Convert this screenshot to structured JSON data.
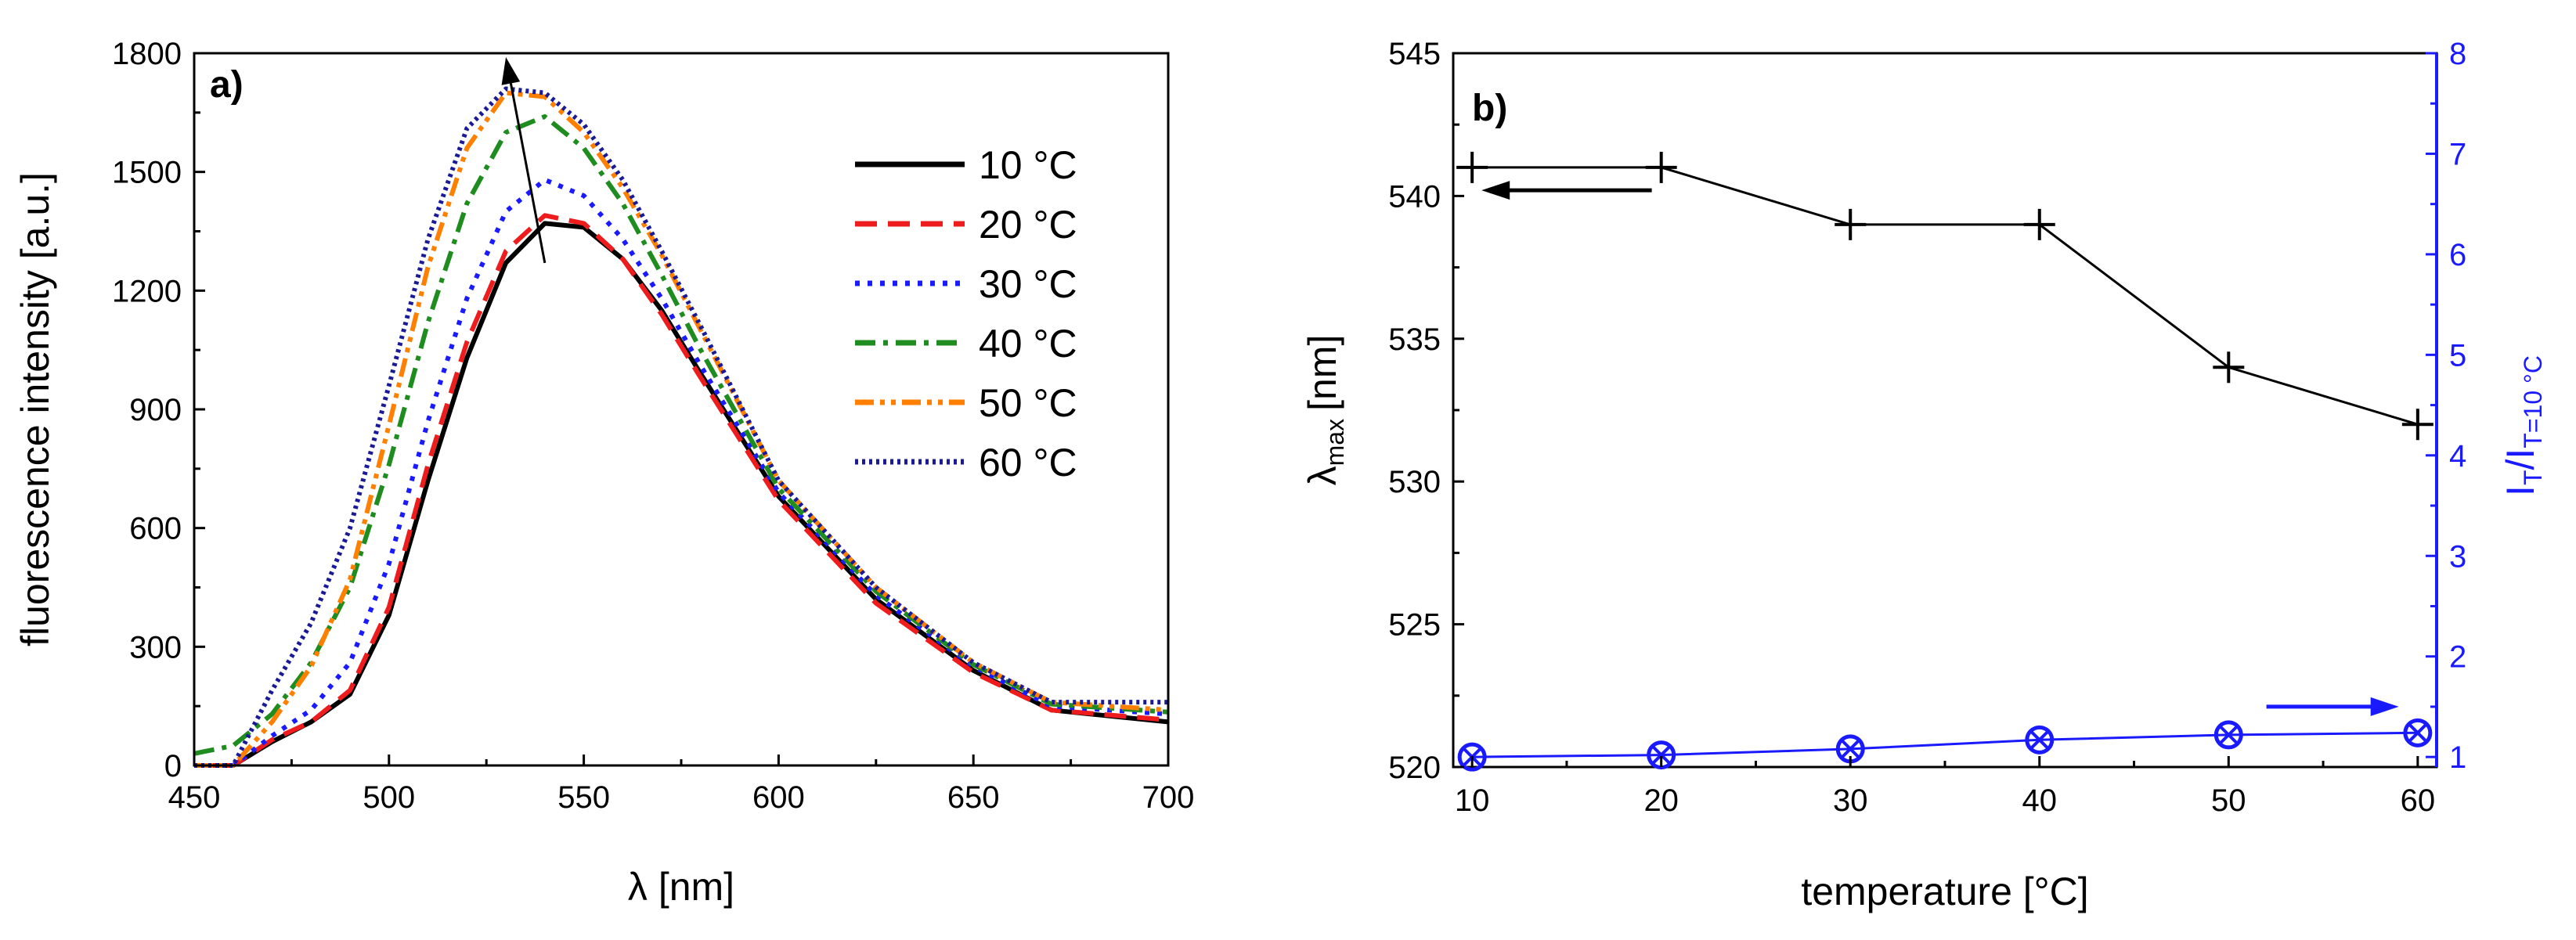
{
  "chart_data": [
    {
      "type": "line",
      "panel_label": "a)",
      "xlabel": "λ [nm]",
      "ylabel": "fluorescence intensity [a.u.]",
      "xlim": [
        450,
        700
      ],
      "ylim": [
        0,
        1800
      ],
      "xticks": [
        450,
        500,
        550,
        600,
        650,
        700
      ],
      "yticks": [
        0,
        300,
        600,
        900,
        1200,
        1500,
        1800
      ],
      "legend_position": "top-right",
      "annotation": "arrow indicating peak shift with increasing temperature",
      "series": [
        {
          "name": "10 °C",
          "color": "#000000",
          "style": "solid",
          "x": [
            450,
            460,
            470,
            480,
            490,
            500,
            510,
            520,
            530,
            540,
            550,
            560,
            570,
            580,
            600,
            625,
            650,
            670,
            700
          ],
          "values": [
            0,
            0,
            60,
            110,
            180,
            380,
            720,
            1030,
            1270,
            1370,
            1360,
            1280,
            1150,
            990,
            680,
            420,
            240,
            140,
            110
          ]
        },
        {
          "name": "20 °C",
          "color": "#ee1c1c",
          "style": "dash",
          "x": [
            450,
            460,
            470,
            480,
            490,
            500,
            510,
            520,
            530,
            540,
            550,
            560,
            570,
            580,
            600,
            625,
            650,
            670,
            700
          ],
          "values": [
            0,
            0,
            65,
            110,
            190,
            400,
            760,
            1070,
            1300,
            1390,
            1370,
            1280,
            1140,
            980,
            670,
            410,
            235,
            140,
            115
          ]
        },
        {
          "name": "30 °C",
          "color": "#1a1aff",
          "style": "dot",
          "x": [
            450,
            460,
            470,
            480,
            490,
            500,
            510,
            520,
            530,
            540,
            550,
            560,
            570,
            580,
            600,
            625,
            650,
            670,
            700
          ],
          "values": [
            0,
            0,
            75,
            140,
            260,
            510,
            870,
            1180,
            1400,
            1480,
            1440,
            1330,
            1180,
            1010,
            690,
            430,
            250,
            150,
            130
          ]
        },
        {
          "name": "40 °C",
          "color": "#1e8c1e",
          "style": "dashdot",
          "x": [
            450,
            460,
            470,
            480,
            490,
            500,
            510,
            520,
            530,
            540,
            550,
            560,
            570,
            580,
            600,
            625,
            650,
            670,
            700
          ],
          "values": [
            30,
            50,
            130,
            260,
            450,
            760,
            1120,
            1420,
            1600,
            1640,
            1560,
            1420,
            1240,
            1050,
            700,
            440,
            255,
            155,
            135
          ]
        },
        {
          "name": "50 °C",
          "color": "#ff8000",
          "style": "dashdotdot",
          "x": [
            450,
            460,
            470,
            480,
            490,
            500,
            510,
            520,
            530,
            540,
            550,
            560,
            570,
            580,
            600,
            625,
            650,
            670,
            700
          ],
          "values": [
            0,
            0,
            110,
            250,
            470,
            860,
            1260,
            1560,
            1700,
            1690,
            1600,
            1460,
            1290,
            1100,
            720,
            450,
            260,
            160,
            140
          ]
        },
        {
          "name": "60 °C",
          "color": "#1a1a99",
          "style": "shortdot",
          "x": [
            450,
            460,
            470,
            480,
            490,
            500,
            510,
            520,
            530,
            540,
            550,
            560,
            570,
            580,
            600,
            625,
            650,
            670,
            700
          ],
          "values": [
            0,
            0,
            190,
            360,
            600,
            960,
            1330,
            1610,
            1710,
            1700,
            1620,
            1480,
            1300,
            1110,
            720,
            450,
            260,
            160,
            160
          ]
        }
      ]
    },
    {
      "type": "line",
      "panel_label": "b)",
      "xlabel": "temperature [°C]",
      "ylabel": "λ",
      "ylabel_sub": "max",
      "ylabel_unit": "[nm]",
      "y2label": "I",
      "y2label_sub": "T",
      "y2label_mid": "/I",
      "y2label_sub2": "T=10 °C",
      "xlim": [
        9,
        61
      ],
      "ylim": [
        520,
        545
      ],
      "y2lim": [
        0.9,
        8
      ],
      "xticks": [
        10,
        20,
        30,
        40,
        50,
        60
      ],
      "yticks": [
        520,
        525,
        530,
        535,
        540,
        545
      ],
      "y2ticks": [
        1,
        2,
        3,
        4,
        5,
        6,
        7,
        8
      ],
      "annotations": [
        "left arrow marks λmax series (left axis)",
        "right arrow marks intensity ratio series (right axis)"
      ],
      "series": [
        {
          "name": "λmax",
          "axis": "left",
          "color": "#000000",
          "marker": "plus",
          "x": [
            10,
            20,
            30,
            40,
            50,
            60
          ],
          "values": [
            541,
            541,
            539,
            539,
            534,
            532
          ]
        },
        {
          "name": "I_T/I_T=10°C",
          "axis": "right",
          "color": "#1a1aff",
          "marker": "circle-x",
          "x": [
            10,
            20,
            30,
            40,
            50,
            60
          ],
          "values": [
            1.0,
            1.02,
            1.08,
            1.17,
            1.22,
            1.24
          ]
        }
      ]
    }
  ]
}
